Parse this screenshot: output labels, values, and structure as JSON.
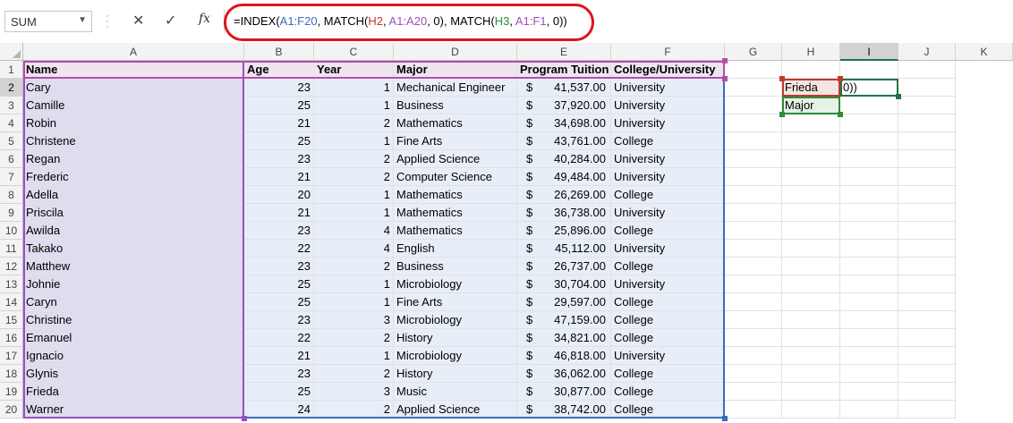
{
  "formula_bar": {
    "name_box": "SUM",
    "cancel_icon": "✕",
    "enter_icon": "✓",
    "fx_label": "fx",
    "formula_parts": [
      {
        "text": "=INDEX(",
        "color": "#000000"
      },
      {
        "text": "A1:F20",
        "color": "#3a6cbf"
      },
      {
        "text": ", MATCH(",
        "color": "#000000"
      },
      {
        "text": "H2",
        "color": "#c0392b"
      },
      {
        "text": ", ",
        "color": "#000000"
      },
      {
        "text": "A1:A20",
        "color": "#9c4fbf"
      },
      {
        "text": ", 0), MATCH(",
        "color": "#000000"
      },
      {
        "text": "H3",
        "color": "#2e8b3a"
      },
      {
        "text": ", ",
        "color": "#000000"
      },
      {
        "text": "A1:F1",
        "color": "#9c4fbf"
      },
      {
        "text": ", 0))",
        "color": "#000000"
      }
    ]
  },
  "columns": [
    "A",
    "B",
    "C",
    "D",
    "E",
    "F",
    "G",
    "H",
    "I",
    "J",
    "K"
  ],
  "rows": [
    "1",
    "2",
    "3",
    "4",
    "5",
    "6",
    "7",
    "8",
    "9",
    "10",
    "11",
    "12",
    "13",
    "14",
    "15",
    "16",
    "17",
    "18",
    "19",
    "20"
  ],
  "headers": {
    "name": "Name",
    "age": "Age",
    "year": "Year",
    "major": "Major",
    "tuition": "Program Tuition",
    "college": "College/University"
  },
  "data": [
    {
      "name": "Cary",
      "age": "23",
      "year": "1",
      "major": "Mechanical Engineer",
      "cur": "$",
      "tuition": "41,537.00",
      "college": "University"
    },
    {
      "name": "Camille",
      "age": "25",
      "year": "1",
      "major": "Business",
      "cur": "$",
      "tuition": "37,920.00",
      "college": "University"
    },
    {
      "name": "Robin",
      "age": "21",
      "year": "2",
      "major": "Mathematics",
      "cur": "$",
      "tuition": "34,698.00",
      "college": "University"
    },
    {
      "name": "Christene",
      "age": "25",
      "year": "1",
      "major": "Fine Arts",
      "cur": "$",
      "tuition": "43,761.00",
      "college": "College"
    },
    {
      "name": "Regan",
      "age": "23",
      "year": "2",
      "major": "Applied Science",
      "cur": "$",
      "tuition": "40,284.00",
      "college": "University"
    },
    {
      "name": "Frederic",
      "age": "21",
      "year": "2",
      "major": "Computer Science",
      "cur": "$",
      "tuition": "49,484.00",
      "college": "University"
    },
    {
      "name": "Adella",
      "age": "20",
      "year": "1",
      "major": "Mathematics",
      "cur": "$",
      "tuition": "26,269.00",
      "college": "College"
    },
    {
      "name": "Priscila",
      "age": "21",
      "year": "1",
      "major": "Mathematics",
      "cur": "$",
      "tuition": "36,738.00",
      "college": "University"
    },
    {
      "name": "Awilda",
      "age": "23",
      "year": "4",
      "major": "Mathematics",
      "cur": "$",
      "tuition": "25,896.00",
      "college": "College"
    },
    {
      "name": "Takako",
      "age": "22",
      "year": "4",
      "major": "English",
      "cur": "$",
      "tuition": "45,112.00",
      "college": "University"
    },
    {
      "name": "Matthew",
      "age": "23",
      "year": "2",
      "major": "Business",
      "cur": "$",
      "tuition": "26,737.00",
      "college": "College"
    },
    {
      "name": "Johnie",
      "age": "25",
      "year": "1",
      "major": "Microbiology",
      "cur": "$",
      "tuition": "30,704.00",
      "college": "University"
    },
    {
      "name": "Caryn",
      "age": "25",
      "year": "1",
      "major": "Fine Arts",
      "cur": "$",
      "tuition": "29,597.00",
      "college": "College"
    },
    {
      "name": "Christine",
      "age": "23",
      "year": "3",
      "major": "Microbiology",
      "cur": "$",
      "tuition": "47,159.00",
      "college": "College"
    },
    {
      "name": "Emanuel",
      "age": "22",
      "year": "2",
      "major": "History",
      "cur": "$",
      "tuition": "34,821.00",
      "college": "College"
    },
    {
      "name": "Ignacio",
      "age": "21",
      "year": "1",
      "major": "Microbiology",
      "cur": "$",
      "tuition": "46,818.00",
      "college": "University"
    },
    {
      "name": "Glynis",
      "age": "23",
      "year": "2",
      "major": "History",
      "cur": "$",
      "tuition": "36,062.00",
      "college": "College"
    },
    {
      "name": "Frieda",
      "age": "25",
      "year": "3",
      "major": "Music",
      "cur": "$",
      "tuition": "30,877.00",
      "college": "College"
    },
    {
      "name": "Warner",
      "age": "24",
      "year": "2",
      "major": "Applied Science",
      "cur": "$",
      "tuition": "38,742.00",
      "college": "College"
    }
  ],
  "lookup": {
    "h2": "Frieda",
    "h3": "Major",
    "i2": "0))"
  },
  "colors": {
    "accent": "#217346",
    "annotation": "#e0141b"
  }
}
